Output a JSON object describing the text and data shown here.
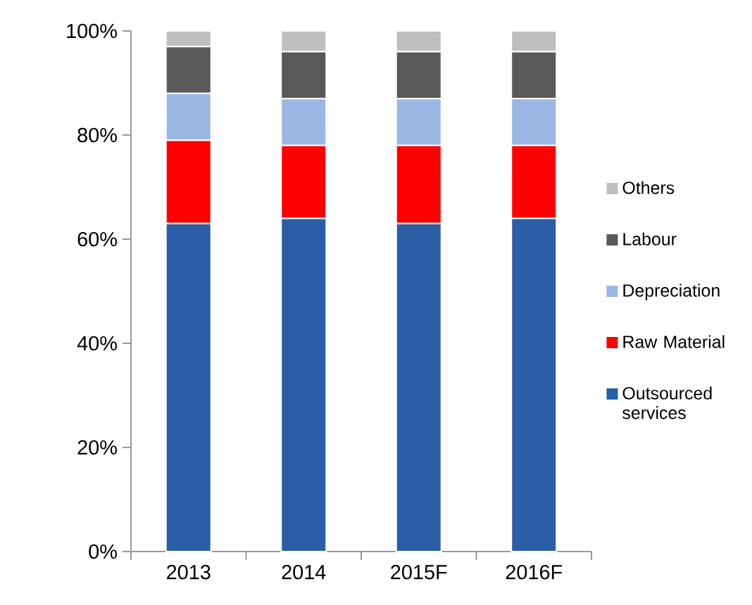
{
  "chart_data": {
    "type": "bar",
    "stacked": true,
    "legend": "right",
    "categories": [
      "2013",
      "2014",
      "2015F",
      "2016F"
    ],
    "series": [
      {
        "name": "Outsourced services",
        "color": "#2a5fa5",
        "values": [
          63,
          64,
          63,
          64
        ]
      },
      {
        "name": "Raw Material",
        "color": "#ff0000",
        "values": [
          16,
          14,
          15,
          14
        ]
      },
      {
        "name": "Depreciation",
        "color": "#9ab8e3",
        "values": [
          9,
          9,
          9,
          9
        ]
      },
      {
        "name": "Labour",
        "color": "#595959",
        "values": [
          9,
          9,
          9,
          9
        ]
      },
      {
        "name": "Others",
        "color": "#bfbfbf",
        "values": [
          3,
          4,
          4,
          4
        ]
      }
    ],
    "ylim": [
      0,
      100
    ],
    "yticks": [
      {
        "value": 0,
        "label": "0%"
      },
      {
        "value": 20,
        "label": "20%"
      },
      {
        "value": 40,
        "label": "40%"
      },
      {
        "value": 60,
        "label": "60%"
      },
      {
        "value": 80,
        "label": "80%"
      },
      {
        "value": 100,
        "label": "100%"
      }
    ]
  }
}
